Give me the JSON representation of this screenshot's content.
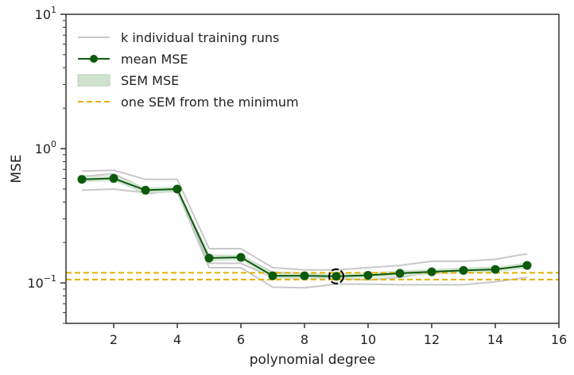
{
  "chart_data": {
    "type": "line",
    "xlabel": "polynomial degree",
    "ylabel": "MSE",
    "xlim": [
      0.5,
      16
    ],
    "ylim": [
      0.05,
      10
    ],
    "yscale": "log",
    "x_ticks": [
      2,
      4,
      6,
      8,
      10,
      12,
      14,
      16
    ],
    "y_ticks": [
      {
        "value": 0.1,
        "base": "10",
        "exp": "−1"
      },
      {
        "value": 1,
        "base": "10",
        "exp": "0"
      },
      {
        "value": 10,
        "base": "10",
        "exp": "1"
      }
    ],
    "x": [
      1,
      2,
      3,
      4,
      5,
      6,
      7,
      8,
      9,
      10,
      11,
      12,
      13,
      14,
      15
    ],
    "runs": [
      [
        0.68,
        0.69,
        0.59,
        0.59,
        0.18,
        0.18,
        0.13,
        0.125,
        0.125,
        0.13,
        0.135,
        0.145,
        0.145,
        0.15,
        0.165
      ],
      [
        0.49,
        0.5,
        0.47,
        0.48,
        0.13,
        0.13,
        0.093,
        0.092,
        0.098,
        0.098,
        0.097,
        0.097,
        0.097,
        0.102,
        0.11
      ],
      [
        0.62,
        0.65,
        0.5,
        0.5,
        0.16,
        0.16,
        0.12,
        0.118,
        0.108,
        0.105,
        0.11,
        0.12,
        0.124,
        0.125,
        0.14
      ],
      [
        0.58,
        0.6,
        0.46,
        0.49,
        0.14,
        0.14,
        0.11,
        0.108,
        0.11,
        0.115,
        0.12,
        0.123,
        0.128,
        0.13,
        0.13
      ]
    ],
    "mean": [
      0.59,
      0.6,
      0.49,
      0.5,
      0.153,
      0.155,
      0.113,
      0.113,
      0.112,
      0.114,
      0.118,
      0.121,
      0.124,
      0.126,
      0.135
    ],
    "sem_fraction": 0.05,
    "min_degree": 9,
    "one_sem_lines": [
      0.119,
      0.106
    ],
    "legend": {
      "placement": "top-left",
      "entries": [
        "k individual training runs",
        "mean MSE",
        "SEM MSE",
        "one SEM from the minimum"
      ]
    },
    "colors": {
      "runs": "#c8c8c8",
      "mean": "#0b5b0b",
      "sem": "#cfe3cf",
      "threshold": "#e0b000"
    }
  }
}
